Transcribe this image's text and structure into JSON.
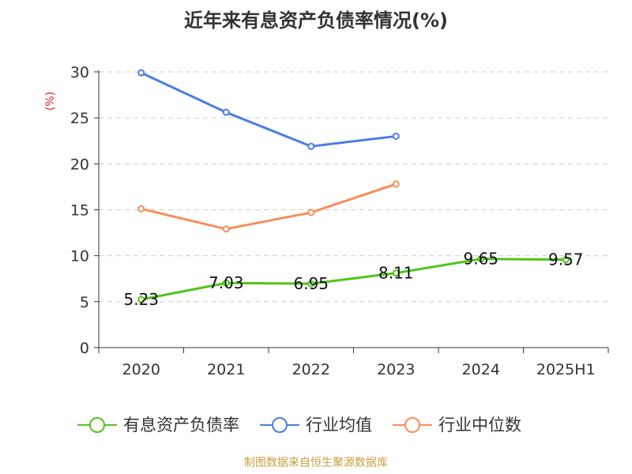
{
  "chart_data": {
    "type": "line",
    "title": "近年来有息资产负债率情况(%)",
    "ylabel": "(%)",
    "categories": [
      "2020",
      "2021",
      "2022",
      "2023",
      "2024",
      "2025H1"
    ],
    "ylim": [
      0,
      30
    ],
    "yticks": [
      0,
      5,
      10,
      15,
      20,
      25,
      30
    ],
    "grid": true,
    "legend_position": "bottom",
    "series": [
      {
        "name": "有息资产负债率",
        "color": "#52c41a",
        "values": [
          5.23,
          7.03,
          6.95,
          8.11,
          9.65,
          9.57
        ],
        "labels": [
          "5.23",
          "7.03",
          "6.95",
          "8.11",
          "9.65",
          "9.57"
        ]
      },
      {
        "name": "行业均值",
        "color": "#4a7ee0",
        "values": [
          29.9,
          25.6,
          21.9,
          23.0,
          null,
          null
        ]
      },
      {
        "name": "行业中位数",
        "color": "#f78e59",
        "values": [
          15.1,
          12.9,
          14.7,
          17.8,
          null,
          null
        ]
      }
    ]
  },
  "footer": "制图数据来自恒生聚源数据库"
}
